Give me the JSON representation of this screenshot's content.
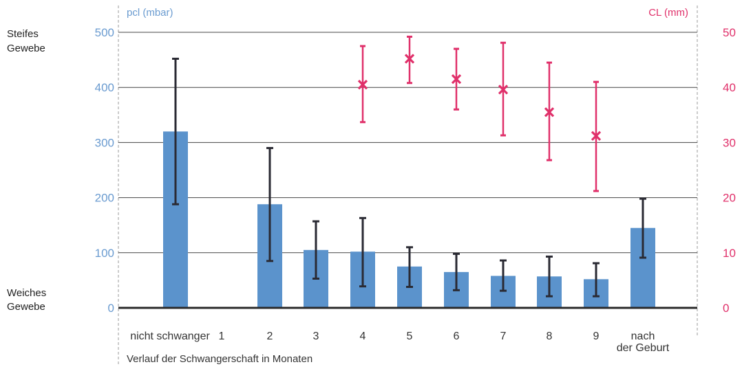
{
  "chart_data": {
    "type": "bar",
    "title": "",
    "left_axis_title": "pcl (mbar)",
    "right_axis_title": "CL (mm)",
    "top_side_label": [
      "Steifes",
      "Gewebe"
    ],
    "bottom_side_label": [
      "Weiches",
      "Gewebe"
    ],
    "xlabel": "Verlauf der Schwangerschaft in Monaten",
    "categories": [
      [
        "nicht schwanger"
      ],
      [
        "1"
      ],
      [
        "2"
      ],
      [
        "3"
      ],
      [
        "4"
      ],
      [
        "5"
      ],
      [
        "6"
      ],
      [
        "7"
      ],
      [
        "8"
      ],
      [
        "9"
      ],
      [
        "nach",
        "der Geburt"
      ]
    ],
    "left_ticks": [
      "0",
      "100",
      "200",
      "300",
      "400",
      "500"
    ],
    "right_ticks": [
      "0",
      "10",
      "20",
      "30",
      "40",
      "50"
    ],
    "ylim_left": [
      0,
      500
    ],
    "ylim_right": [
      0,
      50
    ],
    "series": [
      {
        "name": "pcl (mbar)",
        "axis": "left",
        "kind": "bar",
        "color": "#5b93cc",
        "values": [
          320,
          null,
          188,
          105,
          102,
          75,
          65,
          58,
          57,
          52,
          145
        ],
        "err_low": [
          188,
          null,
          85,
          53,
          39,
          38,
          32,
          31,
          21,
          21,
          91
        ],
        "err_high": [
          452,
          null,
          290,
          157,
          163,
          110,
          98,
          86,
          93,
          81,
          198
        ]
      },
      {
        "name": "CL (mm)",
        "axis": "right",
        "kind": "point",
        "color": "#e0306a",
        "values": [
          null,
          null,
          null,
          null,
          40.5,
          45.2,
          41.5,
          39.6,
          35.5,
          31.2,
          null
        ],
        "err_low": [
          null,
          null,
          null,
          null,
          33.7,
          40.8,
          36.0,
          31.3,
          26.8,
          21.2,
          null
        ],
        "err_high": [
          null,
          null,
          null,
          null,
          47.5,
          49.2,
          47.0,
          48.1,
          44.5,
          41.0,
          null
        ]
      }
    ],
    "grid": true,
    "error_bar_color": "#2a2a33"
  }
}
